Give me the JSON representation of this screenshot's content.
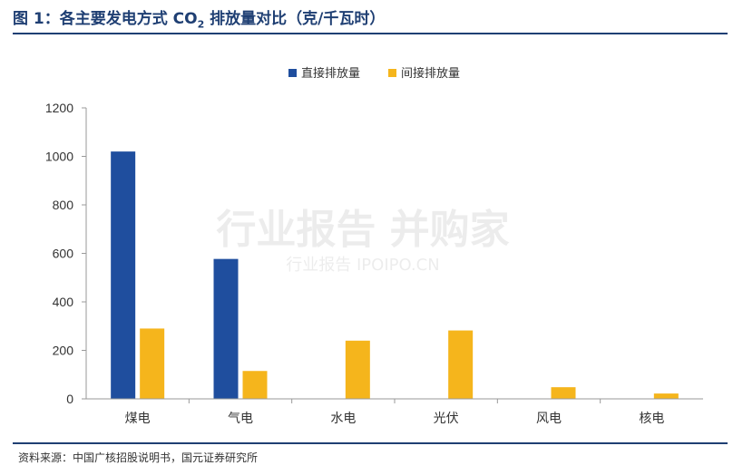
{
  "figure_title": {
    "prefix": "图 1：各主要发电方式 CO",
    "subscript": "2",
    "suffix": " 排放量对比（克/千瓦时）"
  },
  "source_note": "资料来源：中国广核招股说明书，国元证券研究所",
  "watermark": {
    "main": "行业报告 并购家",
    "sub": "行业报告 IPOIPO.CN"
  },
  "colors": {
    "title_blue": "#1f3f73",
    "series_direct": "#1f4e9e",
    "series_indirect": "#f5b51c",
    "axis": "#999999"
  },
  "chart_data": {
    "type": "bar",
    "categories": [
      "煤电",
      "气电",
      "水电",
      "光伏",
      "风电",
      "核电"
    ],
    "series": [
      {
        "name": "直接排放量",
        "values": [
          1020,
          577,
          0,
          0,
          0,
          0
        ]
      },
      {
        "name": "间接排放量",
        "values": [
          290,
          115,
          240,
          282,
          48,
          22
        ]
      }
    ],
    "ylim": [
      0,
      1200
    ],
    "yticks": [
      0,
      200,
      400,
      600,
      800,
      1000,
      1200
    ],
    "xlabel": "",
    "ylabel": "",
    "legend_position": "top-center",
    "grid": false
  }
}
